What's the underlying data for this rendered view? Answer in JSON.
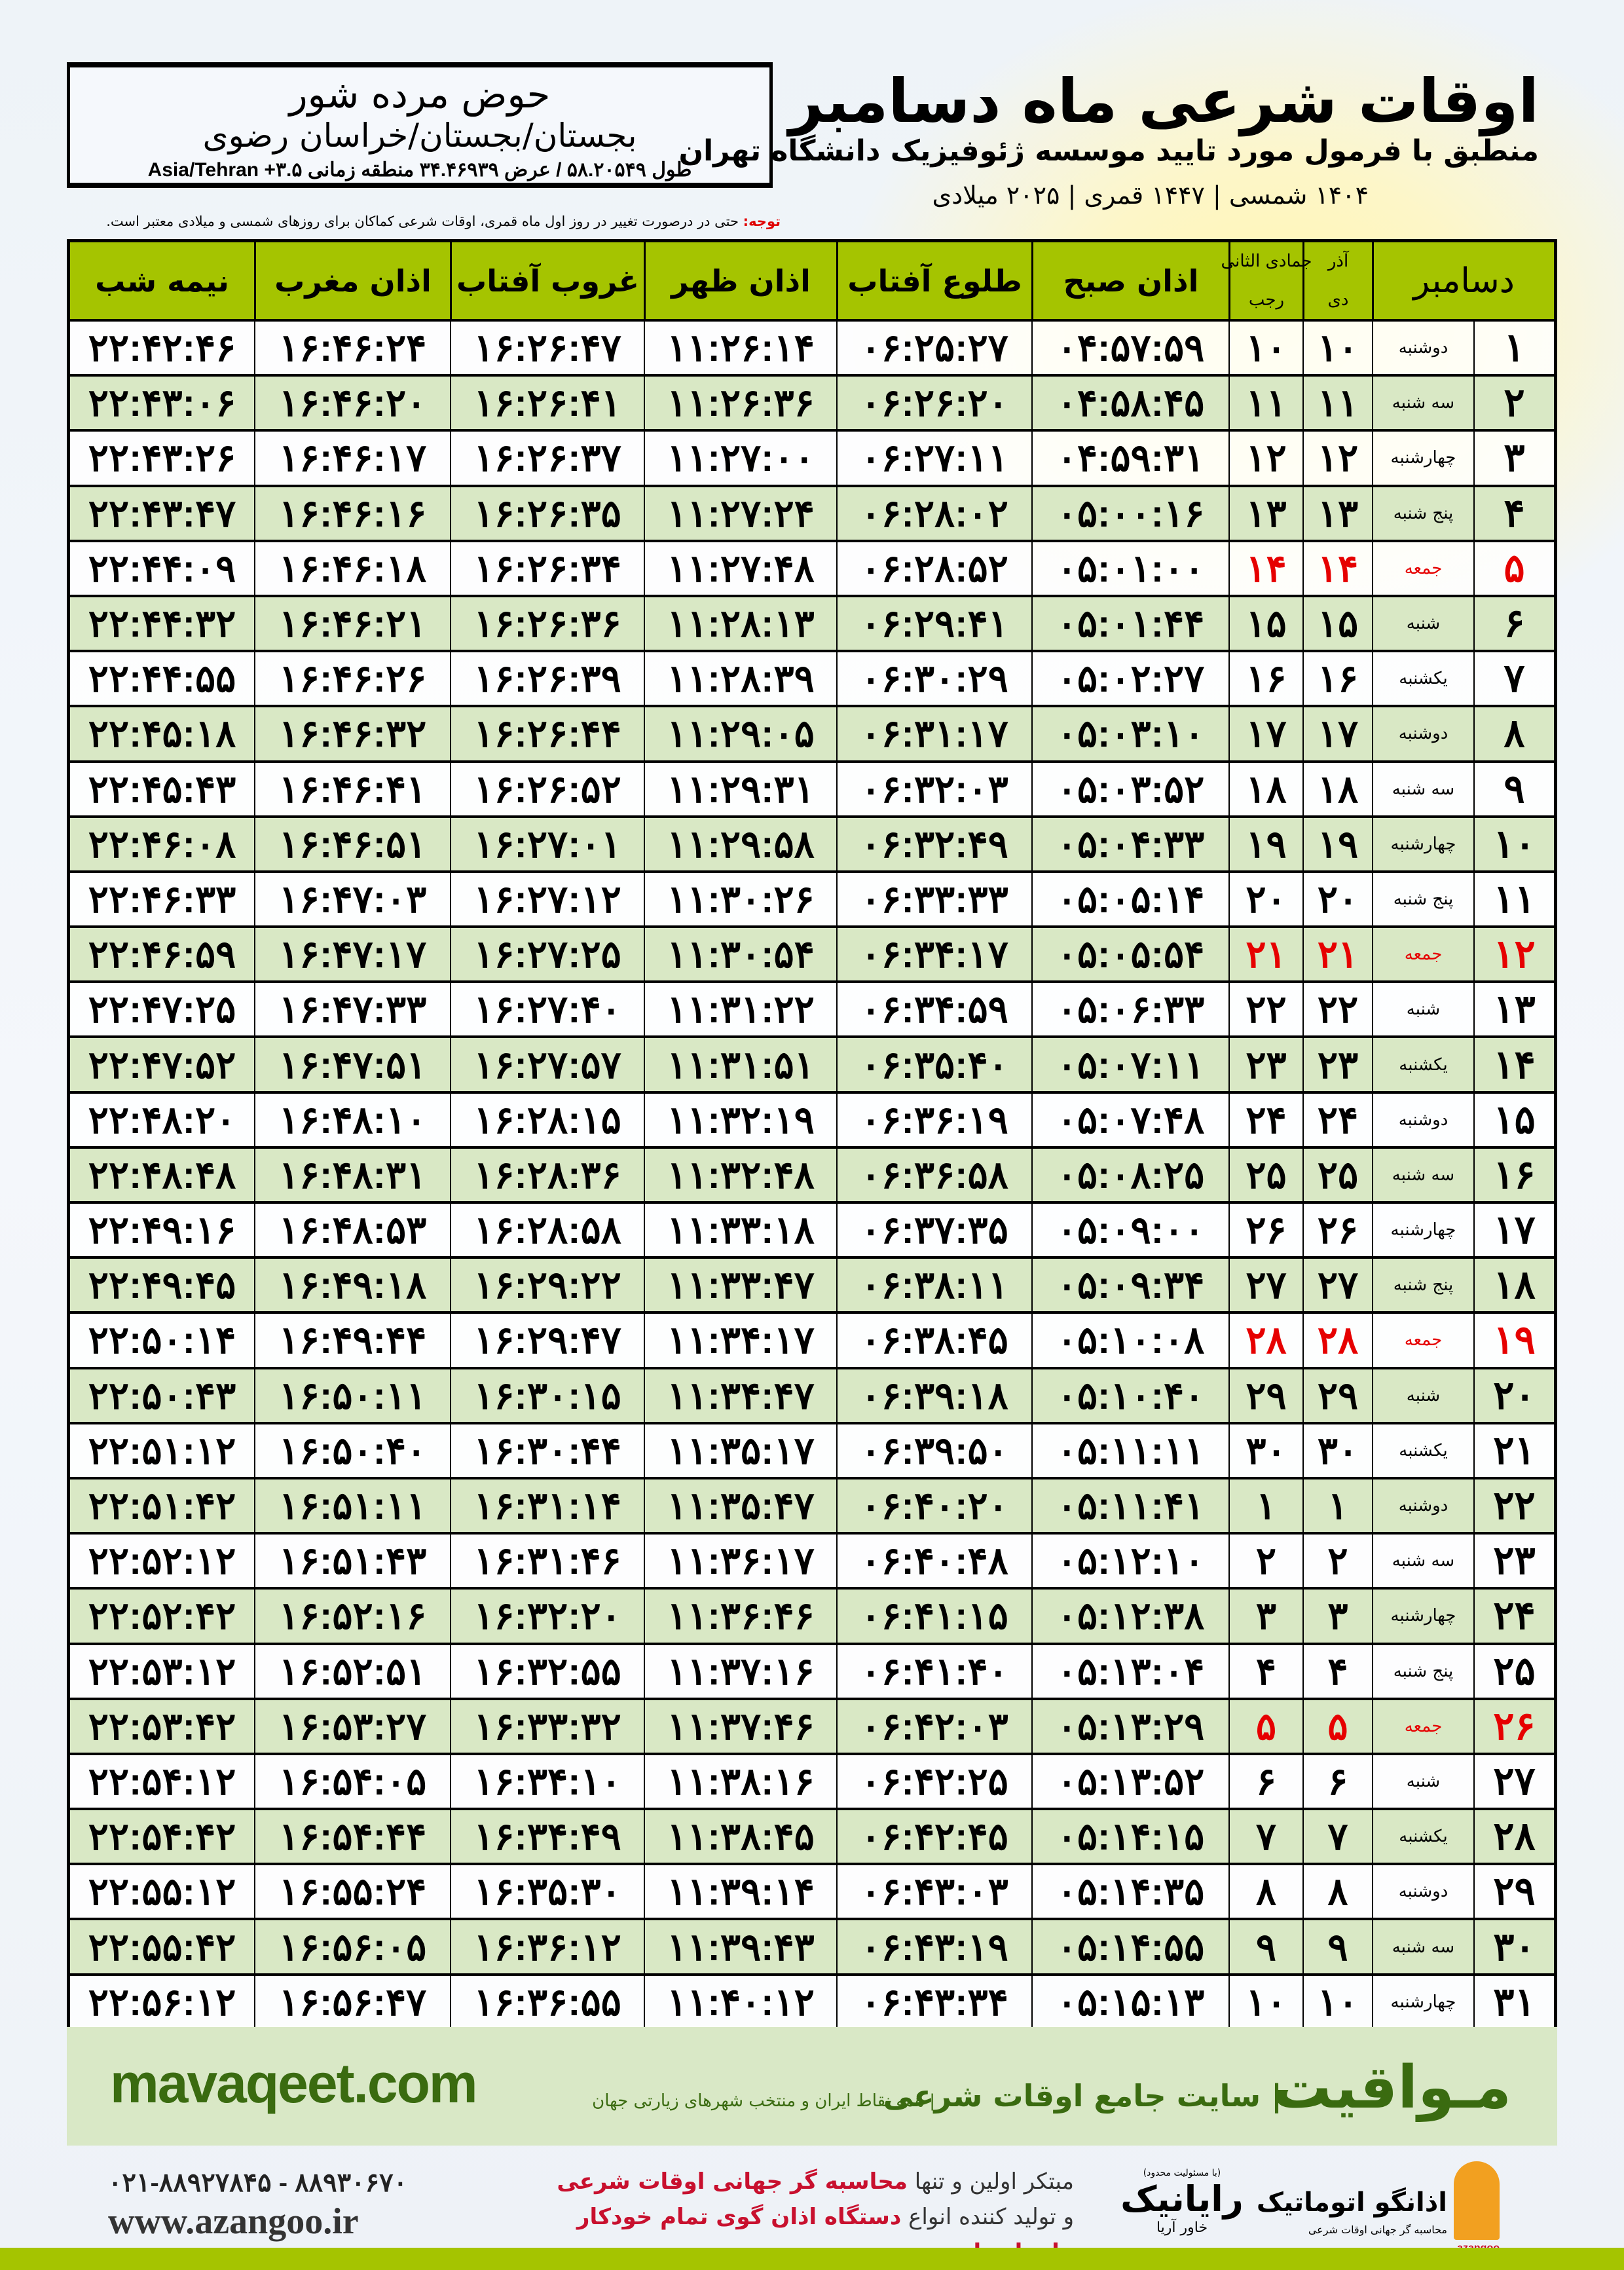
{
  "header": {
    "title": "اوقات شرعی ماه دسامبر",
    "subtitle": "منطبق با فرمول مورد تایید موسسه ژئوفیزیک دانشگاه تهران",
    "years": "۱۴۰۴ شمسی | ۱۴۴۷ قمری | ۲۰۲۵ میلادی"
  },
  "location": {
    "name": "حوض مرده شور",
    "region": "بجستان/بجستان/خراسان رضوی",
    "coords": "طول ۵۸.۲۰۵۴۹ / عرض ۳۴.۴۶۹۳۹ منطقه زمانی ۳.۵+ Asia/Tehran"
  },
  "note": {
    "label": "توجه:",
    "text": " حتی در درصورت تغییر در روز اول ماه قمری، اوقات شرعی کماکان برای روزهای شمسی و میلادی معتبر است."
  },
  "colors": {
    "header_green": "#a5c400",
    "row_green": "#d9e8c5",
    "friday_red": "#e60000",
    "brand_green": "#3a6b10"
  },
  "table": {
    "columns": {
      "month": "دسامبر",
      "shamsi_top": "آذر",
      "shamsi_bottom": "دی",
      "qamari_top": "جمادی الثانی",
      "qamari_bottom": "رجب",
      "sobh": "اذان صبح",
      "tolu": "طلوع آفتاب",
      "zohr": "اذان ظهر",
      "ghorub": "غروب آفتاب",
      "maghrib": "اذان مغرب",
      "nimeshab": "نیمه شب"
    },
    "holiday_weekday": "جمعه",
    "rows": [
      [
        "۱",
        "دوشنبه",
        "۱۰",
        "۱۰",
        "۰۴:۵۷:۵۹",
        "۰۶:۲۵:۲۷",
        "۱۱:۲۶:۱۴",
        "۱۶:۲۶:۴۷",
        "۱۶:۴۶:۲۴",
        "۲۲:۴۲:۴۶"
      ],
      [
        "۲",
        "سه شنبه",
        "۱۱",
        "۱۱",
        "۰۴:۵۸:۴۵",
        "۰۶:۲۶:۲۰",
        "۱۱:۲۶:۳۶",
        "۱۶:۲۶:۴۱",
        "۱۶:۴۶:۲۰",
        "۲۲:۴۳:۰۶"
      ],
      [
        "۳",
        "چهارشنبه",
        "۱۲",
        "۱۲",
        "۰۴:۵۹:۳۱",
        "۰۶:۲۷:۱۱",
        "۱۱:۲۷:۰۰",
        "۱۶:۲۶:۳۷",
        "۱۶:۴۶:۱۷",
        "۲۲:۴۳:۲۶"
      ],
      [
        "۴",
        "پنج شنبه",
        "۱۳",
        "۱۳",
        "۰۵:۰۰:۱۶",
        "۰۶:۲۸:۰۲",
        "۱۱:۲۷:۲۴",
        "۱۶:۲۶:۳۵",
        "۱۶:۴۶:۱۶",
        "۲۲:۴۳:۴۷"
      ],
      [
        "۵",
        "جمعه",
        "۱۴",
        "۱۴",
        "۰۵:۰۱:۰۰",
        "۰۶:۲۸:۵۲",
        "۱۱:۲۷:۴۸",
        "۱۶:۲۶:۳۴",
        "۱۶:۴۶:۱۸",
        "۲۲:۴۴:۰۹"
      ],
      [
        "۶",
        "شنبه",
        "۱۵",
        "۱۵",
        "۰۵:۰۱:۴۴",
        "۰۶:۲۹:۴۱",
        "۱۱:۲۸:۱۳",
        "۱۶:۲۶:۳۶",
        "۱۶:۴۶:۲۱",
        "۲۲:۴۴:۳۲"
      ],
      [
        "۷",
        "یکشنبه",
        "۱۶",
        "۱۶",
        "۰۵:۰۲:۲۷",
        "۰۶:۳۰:۲۹",
        "۱۱:۲۸:۳۹",
        "۱۶:۲۶:۳۹",
        "۱۶:۴۶:۲۶",
        "۲۲:۴۴:۵۵"
      ],
      [
        "۸",
        "دوشنبه",
        "۱۷",
        "۱۷",
        "۰۵:۰۳:۱۰",
        "۰۶:۳۱:۱۷",
        "۱۱:۲۹:۰۵",
        "۱۶:۲۶:۴۴",
        "۱۶:۴۶:۳۲",
        "۲۲:۴۵:۱۸"
      ],
      [
        "۹",
        "سه شنبه",
        "۱۸",
        "۱۸",
        "۰۵:۰۳:۵۲",
        "۰۶:۳۲:۰۳",
        "۱۱:۲۹:۳۱",
        "۱۶:۲۶:۵۲",
        "۱۶:۴۶:۴۱",
        "۲۲:۴۵:۴۳"
      ],
      [
        "۱۰",
        "چهارشنبه",
        "۱۹",
        "۱۹",
        "۰۵:۰۴:۳۳",
        "۰۶:۳۲:۴۹",
        "۱۱:۲۹:۵۸",
        "۱۶:۲۷:۰۱",
        "۱۶:۴۶:۵۱",
        "۲۲:۴۶:۰۸"
      ],
      [
        "۱۱",
        "پنج شنبه",
        "۲۰",
        "۲۰",
        "۰۵:۰۵:۱۴",
        "۰۶:۳۳:۳۳",
        "۱۱:۳۰:۲۶",
        "۱۶:۲۷:۱۲",
        "۱۶:۴۷:۰۳",
        "۲۲:۴۶:۳۳"
      ],
      [
        "۱۲",
        "جمعه",
        "۲۱",
        "۲۱",
        "۰۵:۰۵:۵۴",
        "۰۶:۳۴:۱۷",
        "۱۱:۳۰:۵۴",
        "۱۶:۲۷:۲۵",
        "۱۶:۴۷:۱۷",
        "۲۲:۴۶:۵۹"
      ],
      [
        "۱۳",
        "شنبه",
        "۲۲",
        "۲۲",
        "۰۵:۰۶:۳۳",
        "۰۶:۳۴:۵۹",
        "۱۱:۳۱:۲۲",
        "۱۶:۲۷:۴۰",
        "۱۶:۴۷:۳۳",
        "۲۲:۴۷:۲۵"
      ],
      [
        "۱۴",
        "یکشنبه",
        "۲۳",
        "۲۳",
        "۰۵:۰۷:۱۱",
        "۰۶:۳۵:۴۰",
        "۱۱:۳۱:۵۱",
        "۱۶:۲۷:۵۷",
        "۱۶:۴۷:۵۱",
        "۲۲:۴۷:۵۲"
      ],
      [
        "۱۵",
        "دوشنبه",
        "۲۴",
        "۲۴",
        "۰۵:۰۷:۴۸",
        "۰۶:۳۶:۱۹",
        "۱۱:۳۲:۱۹",
        "۱۶:۲۸:۱۵",
        "۱۶:۴۸:۱۰",
        "۲۲:۴۸:۲۰"
      ],
      [
        "۱۶",
        "سه شنبه",
        "۲۵",
        "۲۵",
        "۰۵:۰۸:۲۵",
        "۰۶:۳۶:۵۸",
        "۱۱:۳۲:۴۸",
        "۱۶:۲۸:۳۶",
        "۱۶:۴۸:۳۱",
        "۲۲:۴۸:۴۸"
      ],
      [
        "۱۷",
        "چهارشنبه",
        "۲۶",
        "۲۶",
        "۰۵:۰۹:۰۰",
        "۰۶:۳۷:۳۵",
        "۱۱:۳۳:۱۸",
        "۱۶:۲۸:۵۸",
        "۱۶:۴۸:۵۳",
        "۲۲:۴۹:۱۶"
      ],
      [
        "۱۸",
        "پنج شنبه",
        "۲۷",
        "۲۷",
        "۰۵:۰۹:۳۴",
        "۰۶:۳۸:۱۱",
        "۱۱:۳۳:۴۷",
        "۱۶:۲۹:۲۲",
        "۱۶:۴۹:۱۸",
        "۲۲:۴۹:۴۵"
      ],
      [
        "۱۹",
        "جمعه",
        "۲۸",
        "۲۸",
        "۰۵:۱۰:۰۸",
        "۰۶:۳۸:۴۵",
        "۱۱:۳۴:۱۷",
        "۱۶:۲۹:۴۷",
        "۱۶:۴۹:۴۴",
        "۲۲:۵۰:۱۴"
      ],
      [
        "۲۰",
        "شنبه",
        "۲۹",
        "۲۹",
        "۰۵:۱۰:۴۰",
        "۰۶:۳۹:۱۸",
        "۱۱:۳۴:۴۷",
        "۱۶:۳۰:۱۵",
        "۱۶:۵۰:۱۱",
        "۲۲:۵۰:۴۳"
      ],
      [
        "۲۱",
        "یکشنبه",
        "۳۰",
        "۳۰",
        "۰۵:۱۱:۱۱",
        "۰۶:۳۹:۵۰",
        "۱۱:۳۵:۱۷",
        "۱۶:۳۰:۴۴",
        "۱۶:۵۰:۴۰",
        "۲۲:۵۱:۱۲"
      ],
      [
        "۲۲",
        "دوشنبه",
        "۱",
        "۱",
        "۰۵:۱۱:۴۱",
        "۰۶:۴۰:۲۰",
        "۱۱:۳۵:۴۷",
        "۱۶:۳۱:۱۴",
        "۱۶:۵۱:۱۱",
        "۲۲:۵۱:۴۲"
      ],
      [
        "۲۳",
        "سه شنبه",
        "۲",
        "۲",
        "۰۵:۱۲:۱۰",
        "۰۶:۴۰:۴۸",
        "۱۱:۳۶:۱۷",
        "۱۶:۳۱:۴۶",
        "۱۶:۵۱:۴۳",
        "۲۲:۵۲:۱۲"
      ],
      [
        "۲۴",
        "چهارشنبه",
        "۳",
        "۳",
        "۰۵:۱۲:۳۸",
        "۰۶:۴۱:۱۵",
        "۱۱:۳۶:۴۶",
        "۱۶:۳۲:۲۰",
        "۱۶:۵۲:۱۶",
        "۲۲:۵۲:۴۲"
      ],
      [
        "۲۵",
        "پنج شنبه",
        "۴",
        "۴",
        "۰۵:۱۳:۰۴",
        "۰۶:۴۱:۴۰",
        "۱۱:۳۷:۱۶",
        "۱۶:۳۲:۵۵",
        "۱۶:۵۲:۵۱",
        "۲۲:۵۳:۱۲"
      ],
      [
        "۲۶",
        "جمعه",
        "۵",
        "۵",
        "۰۵:۱۳:۲۹",
        "۰۶:۴۲:۰۳",
        "۱۱:۳۷:۴۶",
        "۱۶:۳۳:۳۲",
        "۱۶:۵۳:۲۷",
        "۲۲:۵۳:۴۲"
      ],
      [
        "۲۷",
        "شنبه",
        "۶",
        "۶",
        "۰۵:۱۳:۵۲",
        "۰۶:۴۲:۲۵",
        "۱۱:۳۸:۱۶",
        "۱۶:۳۴:۱۰",
        "۱۶:۵۴:۰۵",
        "۲۲:۵۴:۱۲"
      ],
      [
        "۲۸",
        "یکشنبه",
        "۷",
        "۷",
        "۰۵:۱۴:۱۵",
        "۰۶:۴۲:۴۵",
        "۱۱:۳۸:۴۵",
        "۱۶:۳۴:۴۹",
        "۱۶:۵۴:۴۴",
        "۲۲:۵۴:۴۲"
      ],
      [
        "۲۹",
        "دوشنبه",
        "۸",
        "۸",
        "۰۵:۱۴:۳۵",
        "۰۶:۴۳:۰۳",
        "۱۱:۳۹:۱۴",
        "۱۶:۳۵:۳۰",
        "۱۶:۵۵:۲۴",
        "۲۲:۵۵:۱۲"
      ],
      [
        "۳۰",
        "سه شنبه",
        "۹",
        "۹",
        "۰۵:۱۴:۵۵",
        "۰۶:۴۳:۱۹",
        "۱۱:۳۹:۴۳",
        "۱۶:۳۶:۱۲",
        "۱۶:۵۶:۰۵",
        "۲۲:۵۵:۴۲"
      ],
      [
        "۳۱",
        "چهارشنبه",
        "۱۰",
        "۱۰",
        "۰۵:۱۵:۱۳",
        "۰۶:۴۳:۳۴",
        "۱۱:۴۰:۱۲",
        "۱۶:۳۶:۵۵",
        "۱۶:۵۶:۴۷",
        "۲۲:۵۶:۱۲"
      ]
    ]
  },
  "footer": {
    "brand": "مـواقیت",
    "tagline": "| سایت جامع اوقات شرعی",
    "tagline2": "| همه نقاط ایران و منتخب شهرهای زیارتی جهان",
    "site": "mavaqeet.com",
    "phone": "۰۲۱-۸۸۹۲۷۸۴۵ - ۸۸۹۳۰۶۷۰",
    "www": "www.azangoo.ir",
    "promo1_a": "مبتکر اولین و تنها ",
    "promo1_b": "محاسبه گر جهانی اوقات شرعی",
    "promo2_a": "و تولید کننده انواع ",
    "promo2_b": "دستگاه اذان گوی تمام خودکار ماهواره ای",
    "logo1_note": "(با مسئولیت محدود)",
    "logo1_name": "رایانیک",
    "logo1_sub": "خاور آریا",
    "logo2_name": "اذانگو اتوماتیک",
    "logo2_sub": "محاسبه گر جهانی اوقات شرعی",
    "logo2_latin": "azangoo"
  }
}
